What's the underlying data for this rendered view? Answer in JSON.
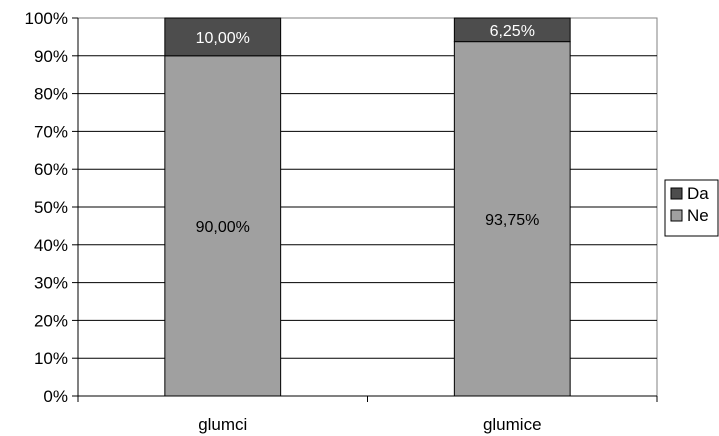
{
  "chart_data": {
    "type": "bar",
    "stacked": true,
    "percent_stacked": true,
    "categories": [
      "glumci",
      "glumice"
    ],
    "series": [
      {
        "name": "Ne",
        "values": [
          90.0,
          93.75
        ],
        "labels": [
          "90,00%",
          "93,75%"
        ],
        "color": "#a0a0a0",
        "label_color": "#000000"
      },
      {
        "name": "Da",
        "values": [
          10.0,
          6.25
        ],
        "labels": [
          "10,00%",
          "6,25%"
        ],
        "color": "#4d4d4d",
        "label_color": "#ffffff"
      }
    ],
    "y_ticks": [
      "0%",
      "10%",
      "20%",
      "30%",
      "40%",
      "50%",
      "60%",
      "70%",
      "80%",
      "90%",
      "100%"
    ],
    "ylim": [
      0,
      100
    ],
    "grid": true,
    "legend_position": "right",
    "legend_order": [
      "Da",
      "Ne"
    ]
  }
}
